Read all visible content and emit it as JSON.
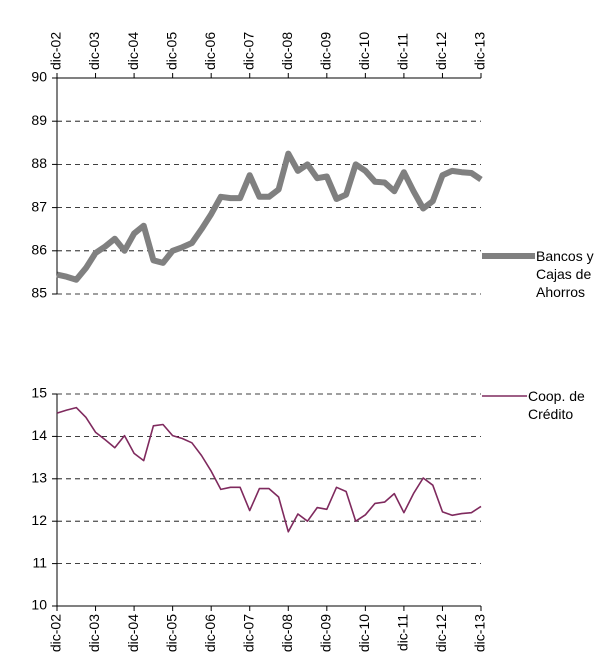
{
  "chart_data": [
    {
      "type": "line",
      "categories": [
        "dic-02",
        null,
        null,
        null,
        "dic-03",
        null,
        null,
        null,
        "dic-04",
        null,
        null,
        null,
        "dic-05",
        null,
        null,
        null,
        "dic-06",
        null,
        null,
        null,
        "dic-07",
        null,
        null,
        null,
        "dic-08",
        null,
        null,
        null,
        "dic-09",
        null,
        null,
        null,
        "dic-10",
        null,
        null,
        null,
        "dic-11",
        null,
        null,
        null,
        "dic-12",
        null,
        null,
        null,
        "dic-13"
      ],
      "series": [
        {
          "name": "Bancos y Cajas de Ahorros",
          "color": "#808080",
          "values": [
            85.45,
            85.4,
            85.33,
            85.6,
            85.95,
            86.1,
            86.28,
            86.0,
            86.4,
            86.58,
            85.78,
            85.72,
            86.0,
            86.08,
            86.18,
            86.5,
            86.85,
            87.25,
            87.22,
            87.22,
            87.75,
            87.25,
            87.25,
            87.42,
            88.25,
            87.85,
            88.0,
            87.68,
            87.72,
            87.2,
            87.3,
            88.0,
            87.85,
            87.6,
            87.58,
            87.38,
            87.82,
            87.38,
            86.98,
            87.15,
            87.75,
            87.85,
            87.82,
            87.8,
            87.65
          ]
        }
      ],
      "ylim": [
        85,
        90
      ],
      "yticks": [
        85,
        86,
        87,
        88,
        89,
        90
      ],
      "grid": true,
      "x_axis": "top",
      "legend": "right"
    },
    {
      "type": "line",
      "categories": [
        "dic-02",
        null,
        null,
        null,
        "dic-03",
        null,
        null,
        null,
        "dic-04",
        null,
        null,
        null,
        "dic-05",
        null,
        null,
        null,
        "dic-06",
        null,
        null,
        null,
        "dic-07",
        null,
        null,
        null,
        "dic-08",
        null,
        null,
        null,
        "dic-09",
        null,
        null,
        null,
        "dic-10",
        null,
        null,
        null,
        "dic-11",
        null,
        null,
        null,
        "dic-12",
        null,
        null,
        null,
        "dic-13"
      ],
      "series": [
        {
          "name": "Coop. de Crédito",
          "color": "#7f2a5e",
          "values": [
            14.55,
            14.62,
            14.68,
            14.45,
            14.1,
            13.92,
            13.73,
            14.02,
            13.6,
            13.43,
            14.25,
            14.28,
            14.02,
            13.95,
            13.85,
            13.55,
            13.18,
            12.75,
            12.8,
            12.8,
            12.25,
            12.77,
            12.77,
            12.57,
            11.75,
            12.17,
            12.0,
            12.32,
            12.28,
            12.8,
            12.7,
            12.0,
            12.15,
            12.42,
            12.45,
            12.65,
            12.2,
            12.65,
            13.02,
            12.85,
            12.22,
            12.14,
            12.18,
            12.2,
            12.35
          ]
        }
      ],
      "ylim": [
        10,
        15
      ],
      "yticks": [
        10,
        11,
        12,
        13,
        14,
        15
      ],
      "grid": true,
      "x_axis": "bottom",
      "legend": "right"
    }
  ]
}
